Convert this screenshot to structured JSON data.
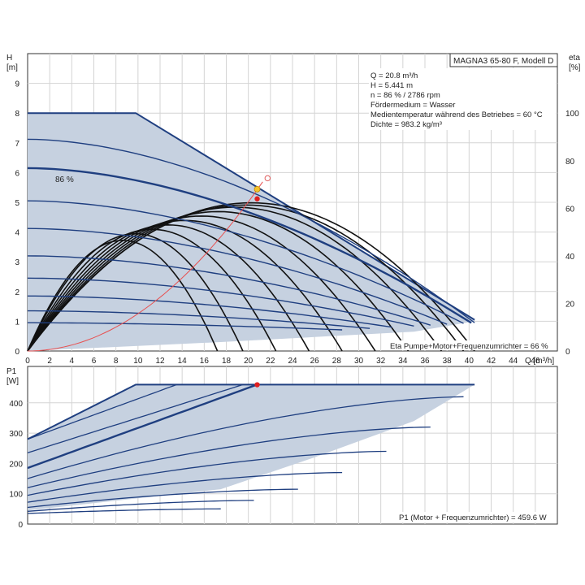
{
  "chart_data": [
    {
      "type": "line",
      "title": "MAGNA3 65-80 F, Modell D",
      "xlabel": "Q [m³/h]",
      "ylabel_left_unit": "H",
      "ylabel_left_bracket": "[m]",
      "ylabel_right_unit": "eta",
      "ylabel_right_bracket": "[%]",
      "xlim": [
        0,
        48
      ],
      "ylim": [
        0,
        10
      ],
      "y2lim": [
        0,
        125
      ],
      "x_ticks": [
        "0",
        "2",
        "4",
        "6",
        "8",
        "10",
        "12",
        "14",
        "16",
        "18",
        "20",
        "22",
        "24",
        "26",
        "28",
        "30",
        "32",
        "34",
        "36",
        "38",
        "40",
        "42",
        "44",
        "46"
      ],
      "y_ticks": [
        "0",
        "1",
        "2",
        "3",
        "4",
        "5",
        "6",
        "7",
        "8",
        "9"
      ],
      "y2_ticks": [
        "0",
        "20",
        "40",
        "60",
        "80",
        "100"
      ],
      "grid": true,
      "info_lines": [
        "Q = 20.8 m³/h",
        "H = 5.441 m",
        "n = 86 % / 2786 rpm",
        "Fördermedium = Wasser",
        "Medientemperatur während des Betriebes = 60 °C",
        "Dichte = 983.2 kg/m³"
      ],
      "speed_label": "86 %",
      "footer_label": "Eta Pumpe+Motor+Frequenzumrichter = 66 %",
      "envelope": [
        [
          0,
          8
        ],
        [
          9.8,
          8
        ],
        [
          40.5,
          1.05
        ],
        [
          40.5,
          1.0
        ],
        [
          35,
          0.65
        ],
        [
          26,
          0.47
        ],
        [
          17.5,
          0.3
        ],
        [
          0,
          0
        ]
      ],
      "pump_curves": [
        {
          "h0": 7.12,
          "qmax": 40.5
        },
        {
          "h0": 6.15,
          "qmax": 40.2,
          "highlight": true
        },
        {
          "h0": 5.05,
          "qmax": 39.5
        },
        {
          "h0": 4.12,
          "qmax": 38.0
        },
        {
          "h0": 3.2,
          "qmax": 36.5
        },
        {
          "h0": 2.45,
          "qmax": 35.0
        },
        {
          "h0": 1.85,
          "qmax": 33.0
        },
        {
          "h0": 1.35,
          "qmax": 31.0
        },
        {
          "h0": 0.95,
          "qmax": 28.5
        }
      ],
      "eta_curves": [
        {
          "qmax": 40.5,
          "peak": 67
        },
        {
          "qmax": 39.5,
          "peak": 66
        },
        {
          "qmax": 37.5,
          "peak": 65
        },
        {
          "qmax": 34.5,
          "peak": 63
        },
        {
          "qmax": 31.5,
          "peak": 61
        },
        {
          "qmax": 28.5,
          "peak": 59
        },
        {
          "qmax": 25.5,
          "peak": 57
        },
        {
          "qmax": 22.5,
          "peak": 55
        },
        {
          "qmax": 19.5,
          "peak": 53
        },
        {
          "qmax": 17.2,
          "peak": 50
        }
      ],
      "system_curve": {
        "k": 0.01254,
        "q_end": 21.3
      },
      "operating_point": {
        "q": 20.8,
        "h": 5.441
      },
      "eta_point": {
        "q": 20.8,
        "eta": 66
      },
      "target_point": {
        "q": 21.3,
        "h": 5.7
      }
    },
    {
      "type": "line",
      "ylabel_unit": "P1",
      "ylabel_bracket": "[W]",
      "xlim": [
        0,
        48
      ],
      "ylim": [
        0,
        520
      ],
      "y_ticks": [
        "0",
        "100",
        "200",
        "300",
        "400"
      ],
      "grid": true,
      "footer_label": "P1 (Motor + Frequenzumrichter) = 459.6 W",
      "envelope": [
        [
          0,
          280
        ],
        [
          9.8,
          460
        ],
        [
          40.5,
          460
        ],
        [
          35,
          340
        ],
        [
          26,
          220
        ],
        [
          17.5,
          115
        ],
        [
          0,
          45
        ]
      ],
      "power_curves": [
        {
          "p0": 280,
          "qend": 13.5,
          "pend": 460
        },
        {
          "p0": 235,
          "qend": 19.5,
          "pend": 460
        },
        {
          "p0": 185,
          "qend": 20.8,
          "pend": 460,
          "highlight": true
        },
        {
          "p0": 150,
          "qend": 39.5,
          "pend": 420
        },
        {
          "p0": 120,
          "qend": 36.5,
          "pend": 320
        },
        {
          "p0": 95,
          "qend": 32.5,
          "pend": 240
        },
        {
          "p0": 72,
          "qend": 28.5,
          "pend": 170
        },
        {
          "p0": 55,
          "qend": 24.5,
          "pend": 115
        },
        {
          "p0": 42,
          "qend": 20.5,
          "pend": 78
        },
        {
          "p0": 35,
          "qend": 17.5,
          "pend": 50
        }
      ],
      "operating_point": {
        "q": 20.8,
        "p": 459.6
      }
    }
  ]
}
